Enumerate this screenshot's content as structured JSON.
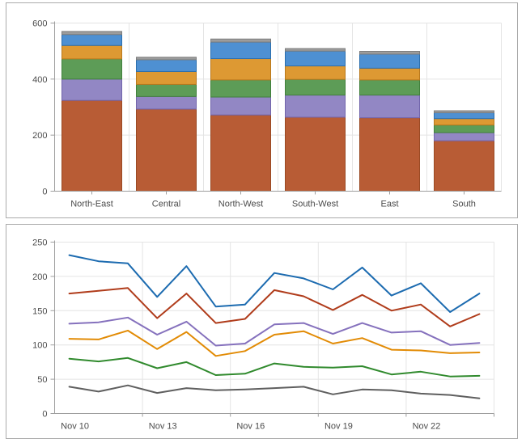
{
  "styles": {
    "panel_border": "#ababab",
    "grid_color": "#e4e4e4",
    "axis_color": "#9e9e9e",
    "tick_label_color": "#4b4b4b",
    "background": "#ffffff"
  },
  "chart_data": [
    {
      "type": "bar",
      "stacked": true,
      "title": "",
      "xlabel": "",
      "ylabel": "",
      "categories": [
        "North-East",
        "Central",
        "North-West",
        "South-West",
        "East",
        "South"
      ],
      "series": [
        {
          "name": "rust",
          "color": "#b85c35",
          "border": "#9a4a24",
          "values": [
            324,
            293,
            272,
            264,
            262,
            180
          ]
        },
        {
          "name": "purple",
          "color": "#9287c4",
          "border": "#7265ab",
          "values": [
            76,
            45,
            64,
            79,
            81,
            29
          ]
        },
        {
          "name": "green",
          "color": "#5d9c57",
          "border": "#41803c",
          "values": [
            72,
            43,
            61,
            56,
            54,
            27
          ]
        },
        {
          "name": "orange",
          "color": "#dd9933",
          "border": "#b9791d",
          "values": [
            48,
            46,
            76,
            48,
            42,
            23
          ]
        },
        {
          "name": "blue",
          "color": "#4e90d2",
          "border": "#2c6fae",
          "values": [
            39,
            42,
            59,
            53,
            50,
            21
          ]
        },
        {
          "name": "gray",
          "color": "#9c9c9c",
          "border": "#7d7d7d",
          "values": [
            11,
            9,
            11,
            9,
            10,
            7
          ]
        }
      ],
      "totals": [
        570,
        478,
        543,
        509,
        499,
        287
      ],
      "ylim": [
        0,
        600
      ],
      "yticks": [
        0,
        200,
        400,
        600
      ],
      "grid": true,
      "legend": "none"
    },
    {
      "type": "line",
      "title": "",
      "xlabel": "",
      "ylabel": "",
      "categories": [
        "Nov 10",
        "Nov 11",
        "Nov 12",
        "Nov 13",
        "Nov 14",
        "Nov 15",
        "Nov 16",
        "Nov 17",
        "Nov 18",
        "Nov 19",
        "Nov 20",
        "Nov 21",
        "Nov 22",
        "Nov 23",
        "Nov 24"
      ],
      "x_tick_labels": [
        "Nov 10",
        "Nov 13",
        "Nov 16",
        "Nov 19",
        "Nov 22"
      ],
      "label_every": 3,
      "series": [
        {
          "name": "blue",
          "color": "#1c6bb0",
          "values": [
            231,
            222,
            219,
            170,
            215,
            156,
            159,
            205,
            197,
            181,
            213,
            172,
            190,
            148,
            175
          ]
        },
        {
          "name": "dark-red",
          "color": "#b03c1b",
          "values": [
            175,
            179,
            183,
            139,
            175,
            132,
            138,
            180,
            171,
            151,
            173,
            150,
            159,
            127,
            145
          ]
        },
        {
          "name": "purple",
          "color": "#8571bd",
          "values": [
            131,
            133,
            140,
            115,
            134,
            99,
            102,
            130,
            132,
            116,
            132,
            118,
            120,
            100,
            103
          ]
        },
        {
          "name": "orange",
          "color": "#e28b05",
          "values": [
            109,
            108,
            121,
            94,
            119,
            84,
            91,
            115,
            120,
            102,
            110,
            93,
            92,
            88,
            89
          ]
        },
        {
          "name": "green",
          "color": "#308a2d",
          "values": [
            80,
            76,
            81,
            66,
            75,
            56,
            58,
            73,
            68,
            67,
            69,
            57,
            61,
            54,
            55
          ]
        },
        {
          "name": "gray",
          "color": "#5f5f5f",
          "values": [
            39,
            32,
            41,
            30,
            37,
            34,
            35,
            37,
            39,
            28,
            35,
            34,
            29,
            27,
            22
          ]
        }
      ],
      "ylim": [
        0,
        250
      ],
      "yticks": [
        0,
        50,
        100,
        150,
        200,
        250
      ],
      "grid": true,
      "legend": "none"
    }
  ]
}
